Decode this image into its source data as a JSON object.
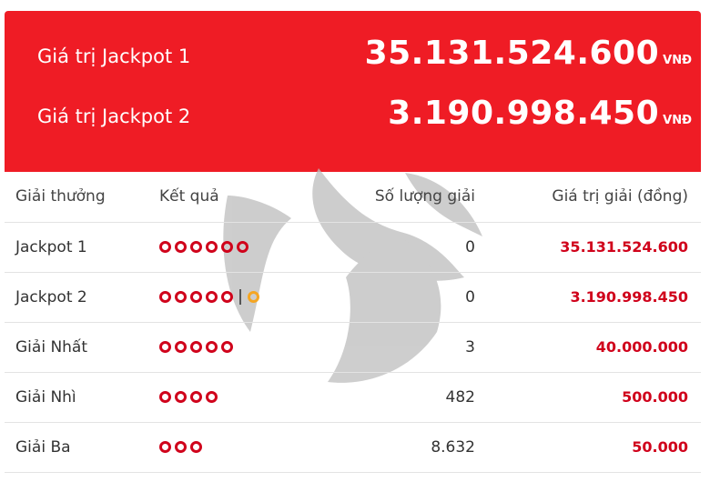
{
  "jackpots": [
    {
      "label": "Giá trị Jackpot 1",
      "amount": "35.131.524.600",
      "unit": "VNĐ"
    },
    {
      "label": "Giá trị Jackpot 2",
      "amount": "3.190.998.450",
      "unit": "VNĐ"
    }
  ],
  "table": {
    "headers": [
      "Giải thưởng",
      "Kết quả",
      "Số lượng giải",
      "Giá trị giải (đồng)"
    ],
    "rows": [
      {
        "prize": "Jackpot 1",
        "balls": 6,
        "bonus": false,
        "count": "0",
        "value": "35.131.524.600"
      },
      {
        "prize": "Jackpot 2",
        "balls": 5,
        "bonus": true,
        "count": "0",
        "value": "3.190.998.450"
      },
      {
        "prize": "Giải Nhất",
        "balls": 5,
        "bonus": false,
        "count": "3",
        "value": "40.000.000"
      },
      {
        "prize": "Giải Nhì",
        "balls": 4,
        "bonus": false,
        "count": "482",
        "value": "500.000"
      },
      {
        "prize": "Giải Ba",
        "balls": 3,
        "bonus": false,
        "count": "8.632",
        "value": "50.000"
      }
    ]
  },
  "colors": {
    "header_red": "#ef1c25",
    "ball_red": "#d0021b",
    "bonus_orange": "#f5a623"
  }
}
